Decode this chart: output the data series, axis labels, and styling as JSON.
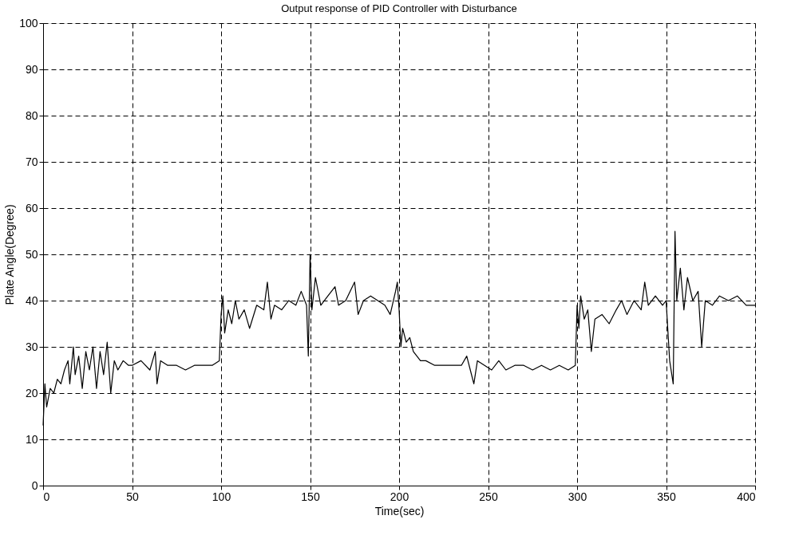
{
  "chart_data": {
    "type": "line",
    "title": "Output response of PID Controller with Disturbance",
    "xlabel": "Time(sec)",
    "ylabel": "Plate Angle(Degree)",
    "x": [
      0,
      1,
      2,
      4,
      6,
      8,
      10,
      12,
      14,
      15,
      17,
      18,
      20,
      22,
      24,
      26,
      28,
      30,
      32,
      34,
      36,
      38,
      40,
      42,
      45,
      48,
      50,
      55,
      60,
      63,
      64,
      66,
      70,
      75,
      80,
      85,
      90,
      95,
      99,
      100,
      101,
      102,
      104,
      106,
      108,
      110,
      113,
      116,
      120,
      124,
      126,
      128,
      130,
      134,
      138,
      142,
      145,
      148,
      149,
      150,
      151,
      153,
      156,
      160,
      164,
      166,
      170,
      175,
      177,
      180,
      184,
      188,
      192,
      195,
      198,
      199,
      200,
      201,
      202,
      204,
      206,
      208,
      210,
      212,
      215,
      220,
      225,
      230,
      235,
      238,
      240,
      242,
      244,
      248,
      252,
      256,
      260,
      265,
      270,
      275,
      280,
      285,
      290,
      295,
      299,
      300,
      301,
      302,
      304,
      306,
      308,
      310,
      314,
      318,
      322,
      325,
      328,
      332,
      336,
      338,
      340,
      344,
      348,
      350,
      352,
      354,
      355,
      356,
      358,
      360,
      362,
      365,
      368,
      370,
      372,
      376,
      380,
      385,
      390,
      395,
      400
    ],
    "series": [
      {
        "color": "#000000",
        "values": [
          13,
          22,
          17,
          21,
          20,
          23,
          22,
          25,
          27,
          22,
          30,
          24,
          28,
          21,
          29,
          25,
          30,
          21,
          29,
          24,
          31,
          20,
          27,
          25,
          27,
          26,
          26,
          27,
          25,
          29,
          22,
          27,
          26,
          26,
          25,
          26,
          26,
          26,
          27,
          37,
          41,
          33,
          38,
          35,
          40,
          36,
          38,
          34,
          39,
          38,
          44,
          36,
          39,
          38,
          40,
          39,
          42,
          39,
          28,
          50,
          38,
          45,
          39,
          41,
          43,
          39,
          40,
          44,
          37,
          40,
          41,
          40,
          39,
          37,
          42,
          44,
          38,
          30,
          34,
          31,
          32,
          29,
          28,
          27,
          27,
          26,
          26,
          26,
          26,
          28,
          25,
          22,
          27,
          26,
          25,
          27,
          25,
          26,
          26,
          25,
          26,
          25,
          26,
          25,
          26,
          39,
          34,
          41,
          36,
          38,
          29,
          36,
          37,
          35,
          38,
          40,
          37,
          40,
          38,
          44,
          39,
          41,
          39,
          40,
          27,
          22,
          55,
          40,
          47,
          38,
          45,
          40,
          42,
          30,
          40,
          39,
          41,
          40,
          41,
          39,
          39
        ]
      }
    ],
    "xlim": [
      0,
      400
    ],
    "xticks": [
      0,
      50,
      100,
      150,
      200,
      250,
      300,
      350,
      400
    ],
    "ylim": [
      0,
      100
    ],
    "yticks": [
      0,
      10,
      20,
      30,
      40,
      50,
      60,
      70,
      80,
      90,
      100
    ],
    "grid": true,
    "line_style": "solid",
    "marker": "none"
  }
}
